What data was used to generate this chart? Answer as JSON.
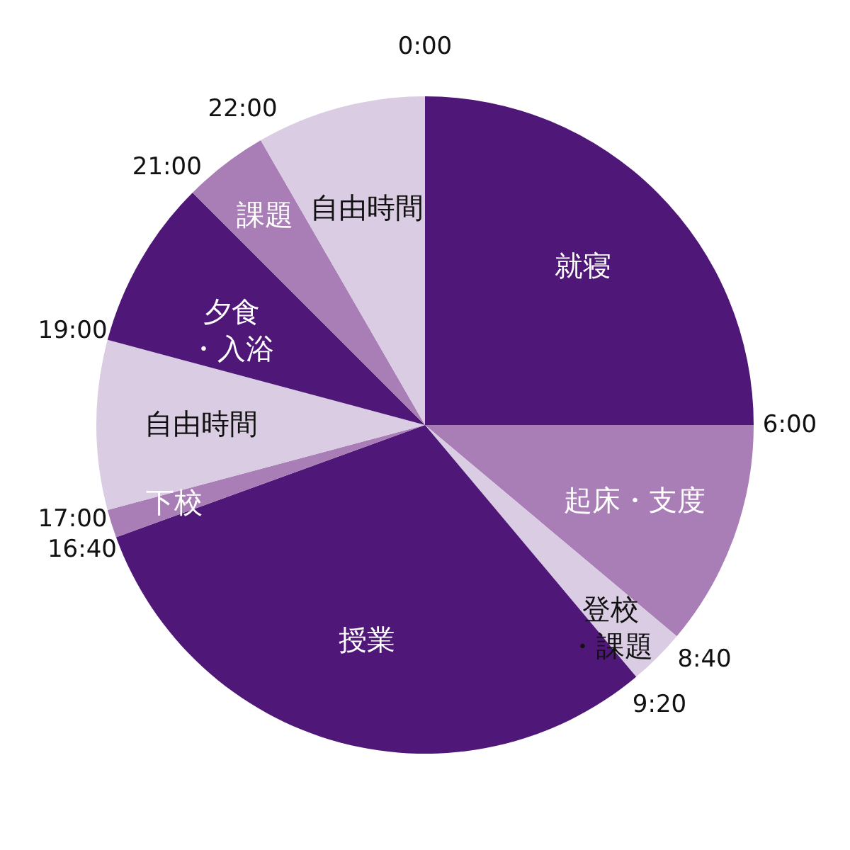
{
  "chart_data": {
    "type": "pie",
    "categories": [
      "就寝",
      "起床・支度",
      "登校・課題",
      "授業",
      "下校",
      "自由時間",
      "夕食・入浴",
      "課題",
      "自由時間"
    ],
    "values": [
      25,
      11.11,
      2.78,
      30.56,
      1.39,
      8.33,
      8.33,
      4.17,
      8.33
    ],
    "colors": [
      "#4f1778",
      "#a97db5",
      "#d9cce3",
      "#4f1778",
      "#a97db5",
      "#d9cce3",
      "#4f1778",
      "#a97db5",
      "#d9cce3"
    ],
    "annotations": [
      "0:00",
      "6:00",
      "8:40",
      "9:20",
      "16:40",
      "17:00",
      "19:00",
      "21:00",
      "22:00"
    ]
  }
}
